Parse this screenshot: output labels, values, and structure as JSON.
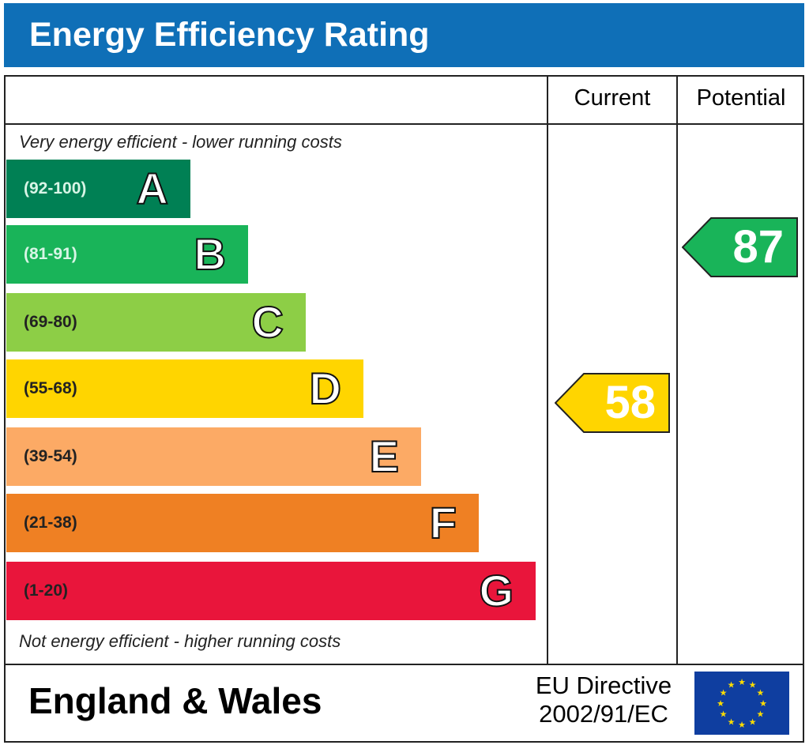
{
  "header": {
    "title": "Energy Efficiency Rating"
  },
  "columns": {
    "current": "Current",
    "potential": "Potential"
  },
  "notes": {
    "top": "Very energy efficient - lower running costs",
    "bottom": "Not energy efficient - higher running costs"
  },
  "footer": {
    "region": "England & Wales",
    "directive_line1": "EU Directive",
    "directive_line2": "2002/91/EC"
  },
  "chart_data": {
    "type": "bar",
    "bands": [
      {
        "letter": "A",
        "range": "(92-100)",
        "color": "#008054",
        "text_color": "#d8f5e6"
      },
      {
        "letter": "B",
        "range": "(81-91)",
        "color": "#19b459",
        "text_color": "#d8f5e6"
      },
      {
        "letter": "C",
        "range": "(69-80)",
        "color": "#8dce46",
        "text_color": "#222222"
      },
      {
        "letter": "D",
        "range": "(55-68)",
        "color": "#ffd500",
        "text_color": "#222222"
      },
      {
        "letter": "E",
        "range": "(39-54)",
        "color": "#fcaa65",
        "text_color": "#222222"
      },
      {
        "letter": "F",
        "range": "(21-38)",
        "color": "#ef8023",
        "text_color": "#222222"
      },
      {
        "letter": "G",
        "range": "(1-20)",
        "color": "#e9153b",
        "text_color": "#222222"
      }
    ],
    "current": {
      "value": "58",
      "band": "D",
      "color": "#ffd500"
    },
    "potential": {
      "value": "87",
      "band": "B",
      "color": "#19b459"
    }
  }
}
